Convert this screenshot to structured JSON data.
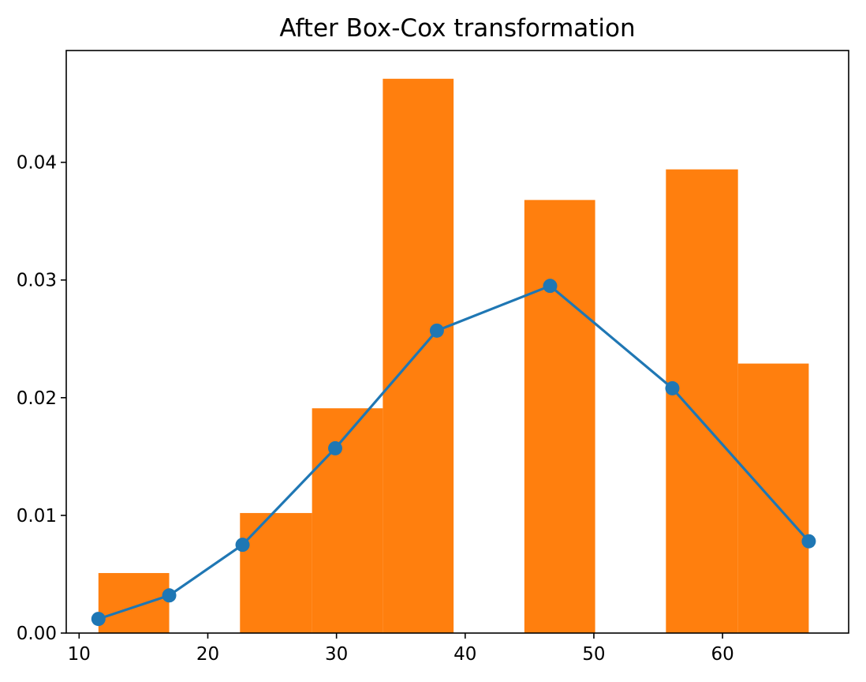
{
  "chart_data": {
    "type": "bar",
    "title": "After Box-Cox transformation",
    "xlabel": "",
    "ylabel": "",
    "xlim": [
      9.0,
      69.8
    ],
    "ylim": [
      0.0,
      0.0495
    ],
    "xticks": [
      10,
      20,
      30,
      40,
      50,
      60
    ],
    "yticks": [
      0.0,
      0.01,
      0.02,
      0.03,
      0.04
    ],
    "ytick_labels": [
      "0.00",
      "0.01",
      "0.02",
      "0.03",
      "0.04"
    ],
    "grid": false,
    "legend": "none",
    "histogram": {
      "color": "#ff7f0e",
      "bins": [
        {
          "x0": 11.5,
          "x1": 17.0,
          "value": 0.0051
        },
        {
          "x0": 17.0,
          "x1": 22.5,
          "value": 0.0
        },
        {
          "x0": 22.5,
          "x1": 28.1,
          "value": 0.0102
        },
        {
          "x0": 28.1,
          "x1": 33.6,
          "value": 0.0191
        },
        {
          "x0": 33.6,
          "x1": 39.1,
          "value": 0.0471
        },
        {
          "x0": 39.1,
          "x1": 44.6,
          "value": 0.0
        },
        {
          "x0": 44.6,
          "x1": 50.1,
          "value": 0.0368
        },
        {
          "x0": 50.1,
          "x1": 55.6,
          "value": 0.0
        },
        {
          "x0": 55.6,
          "x1": 61.2,
          "value": 0.0394
        },
        {
          "x0": 61.2,
          "x1": 66.7,
          "value": 0.0229
        }
      ]
    },
    "series": [
      {
        "type": "line",
        "color": "#1f77b4",
        "marker": "circle",
        "x": [
          11.5,
          17.0,
          22.7,
          29.9,
          37.8,
          46.6,
          56.1,
          66.7
        ],
        "y": [
          0.0012,
          0.0032,
          0.0075,
          0.0157,
          0.0257,
          0.0295,
          0.0208,
          0.0078
        ]
      }
    ]
  }
}
